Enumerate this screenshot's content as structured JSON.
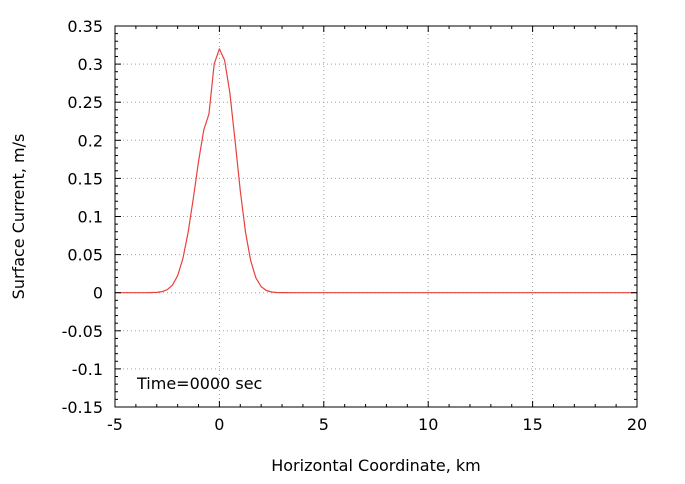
{
  "chart_data": {
    "type": "line",
    "title": "",
    "xlabel": "Horizontal Coordinate, km",
    "ylabel": "Surface Current, m/s",
    "xlim": [
      -5,
      20
    ],
    "ylim": [
      -0.15,
      0.35
    ],
    "x_ticks": [
      -5,
      0,
      5,
      10,
      15,
      20
    ],
    "x_tick_labels": [
      "-5",
      "0",
      "5",
      "10",
      "15",
      "20"
    ],
    "y_ticks": [
      -0.15,
      -0.1,
      -0.05,
      0,
      0.05,
      0.1,
      0.15,
      0.2,
      0.25,
      0.3,
      0.35
    ],
    "y_tick_labels": [
      "-0.15",
      "-0.1",
      "-0.05",
      "0",
      "0.05",
      "0.1",
      "0.15",
      "0.2",
      "0.25",
      "0.3",
      "0.35"
    ],
    "grid": true,
    "annotation": "Time=0000 sec",
    "colors": {
      "line": "#e8413c",
      "grid": "#a0a0a0",
      "axes": "#000000"
    },
    "series": [
      {
        "x": [
          -5,
          -4,
          -3.5,
          -3,
          -2.75,
          -2.5,
          -2.25,
          -2,
          -1.75,
          -1.5,
          -1.25,
          -1,
          -0.75,
          -0.5,
          -0.25,
          0,
          0.25,
          0.5,
          0.75,
          1,
          1.25,
          1.5,
          1.75,
          2,
          2.25,
          2.5,
          2.75,
          3,
          3.5,
          4,
          5,
          10,
          15,
          20
        ],
        "y": [
          0,
          0,
          0,
          0.0004,
          0.0014,
          0.0039,
          0.0099,
          0.0223,
          0.0446,
          0.0788,
          0.1237,
          0.1722,
          0.2133,
          0.2346,
          0.3,
          0.32,
          0.305,
          0.2625,
          0.1993,
          0.1338,
          0.0795,
          0.0418,
          0.0194,
          0.008,
          0.0029,
          0.0009,
          0.0003,
          0.0001,
          0,
          0,
          0,
          0,
          0,
          0
        ]
      }
    ]
  }
}
